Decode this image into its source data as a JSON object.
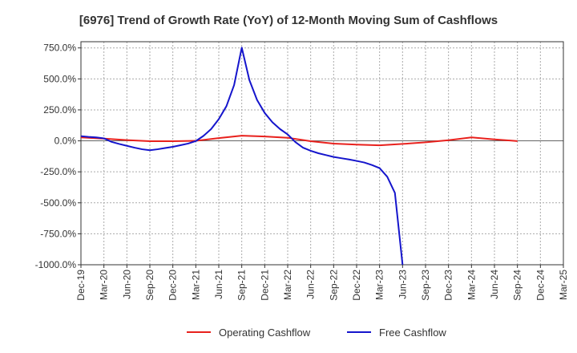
{
  "chart_data": {
    "type": "line",
    "title": "[6976]  Trend of Growth Rate (YoY) of 12-Month Moving Sum of Cashflows",
    "xlabel": "",
    "ylabel": "",
    "ylim": [
      -1000,
      800
    ],
    "y_ticks": [
      750,
      500,
      250,
      0,
      -250,
      -500,
      -750,
      -1000
    ],
    "y_tick_labels": [
      "750.0%",
      "500.0%",
      "250.0%",
      "0.0%",
      "-250.0%",
      "-500.0%",
      "-750.0%",
      "-1000.0%"
    ],
    "x_tick_labels": [
      "Dec-19",
      "Mar-20",
      "Jun-20",
      "Sep-20",
      "Dec-20",
      "Mar-21",
      "Jun-21",
      "Sep-21",
      "Dec-21",
      "Mar-22",
      "Jun-22",
      "Sep-22",
      "Dec-22",
      "Mar-23",
      "Jun-23",
      "Sep-23",
      "Dec-23",
      "Mar-24",
      "Jun-24",
      "Sep-24",
      "Dec-24",
      "Mar-25"
    ],
    "grid": true,
    "legend_position": "bottom",
    "colors": {
      "operating": "#e8211d",
      "free": "#1515cc",
      "grid": "#aaaaaa"
    },
    "series": [
      {
        "name": "Operating Cashflow",
        "color": "#e8211d",
        "points": [
          [
            "Dec-19",
            28
          ],
          [
            "Mar-20",
            18
          ],
          [
            "Jun-20",
            6
          ],
          [
            "Sep-20",
            -3
          ],
          [
            "Dec-20",
            -3
          ],
          [
            "Mar-21",
            0
          ],
          [
            "Jun-21",
            22
          ],
          [
            "Sep-21",
            42
          ],
          [
            "Dec-21",
            35
          ],
          [
            "Mar-22",
            25
          ],
          [
            "Jun-22",
            -3
          ],
          [
            "Sep-22",
            -22
          ],
          [
            "Dec-22",
            -30
          ],
          [
            "Mar-23",
            -36
          ],
          [
            "Jun-23",
            -25
          ],
          [
            "Sep-23",
            -12
          ],
          [
            "Dec-23",
            5
          ],
          [
            "Mar-24",
            28
          ],
          [
            "Jun-24",
            12
          ],
          [
            "Sep-24",
            -2
          ]
        ]
      },
      {
        "name": "Free Cashflow",
        "color": "#1515cc",
        "points": [
          [
            "Dec-19",
            38
          ],
          [
            "Jan-20",
            32
          ],
          [
            "Feb-20",
            28
          ],
          [
            "Mar-20",
            20
          ],
          [
            "Apr-20",
            -8
          ],
          [
            "May-20",
            -25
          ],
          [
            "Jun-20",
            -40
          ],
          [
            "Jul-20",
            -55
          ],
          [
            "Aug-20",
            -68
          ],
          [
            "Sep-20",
            -76
          ],
          [
            "Oct-20",
            -68
          ],
          [
            "Nov-20",
            -58
          ],
          [
            "Dec-20",
            -48
          ],
          [
            "Jan-21",
            -35
          ],
          [
            "Feb-21",
            -22
          ],
          [
            "Mar-21",
            -2
          ],
          [
            "Apr-21",
            40
          ],
          [
            "May-21",
            95
          ],
          [
            "Jun-21",
            175
          ],
          [
            "Jul-21",
            280
          ],
          [
            "Aug-21",
            450
          ],
          [
            "Sep-21",
            752
          ],
          [
            "Oct-21",
            490
          ],
          [
            "Nov-21",
            330
          ],
          [
            "Dec-21",
            225
          ],
          [
            "Jan-22",
            150
          ],
          [
            "Feb-22",
            95
          ],
          [
            "Mar-22",
            52
          ],
          [
            "Apr-22",
            -10
          ],
          [
            "May-22",
            -55
          ],
          [
            "Jun-22",
            -80
          ],
          [
            "Jul-22",
            -100
          ],
          [
            "Aug-22",
            -115
          ],
          [
            "Sep-22",
            -130
          ],
          [
            "Oct-22",
            -140
          ],
          [
            "Nov-22",
            -150
          ],
          [
            "Dec-22",
            -162
          ],
          [
            "Jan-23",
            -175
          ],
          [
            "Feb-23",
            -195
          ],
          [
            "Mar-23",
            -220
          ],
          [
            "Apr-23",
            -290
          ],
          [
            "May-23",
            -420
          ],
          [
            "Jun-23",
            -1000
          ]
        ]
      }
    ]
  }
}
